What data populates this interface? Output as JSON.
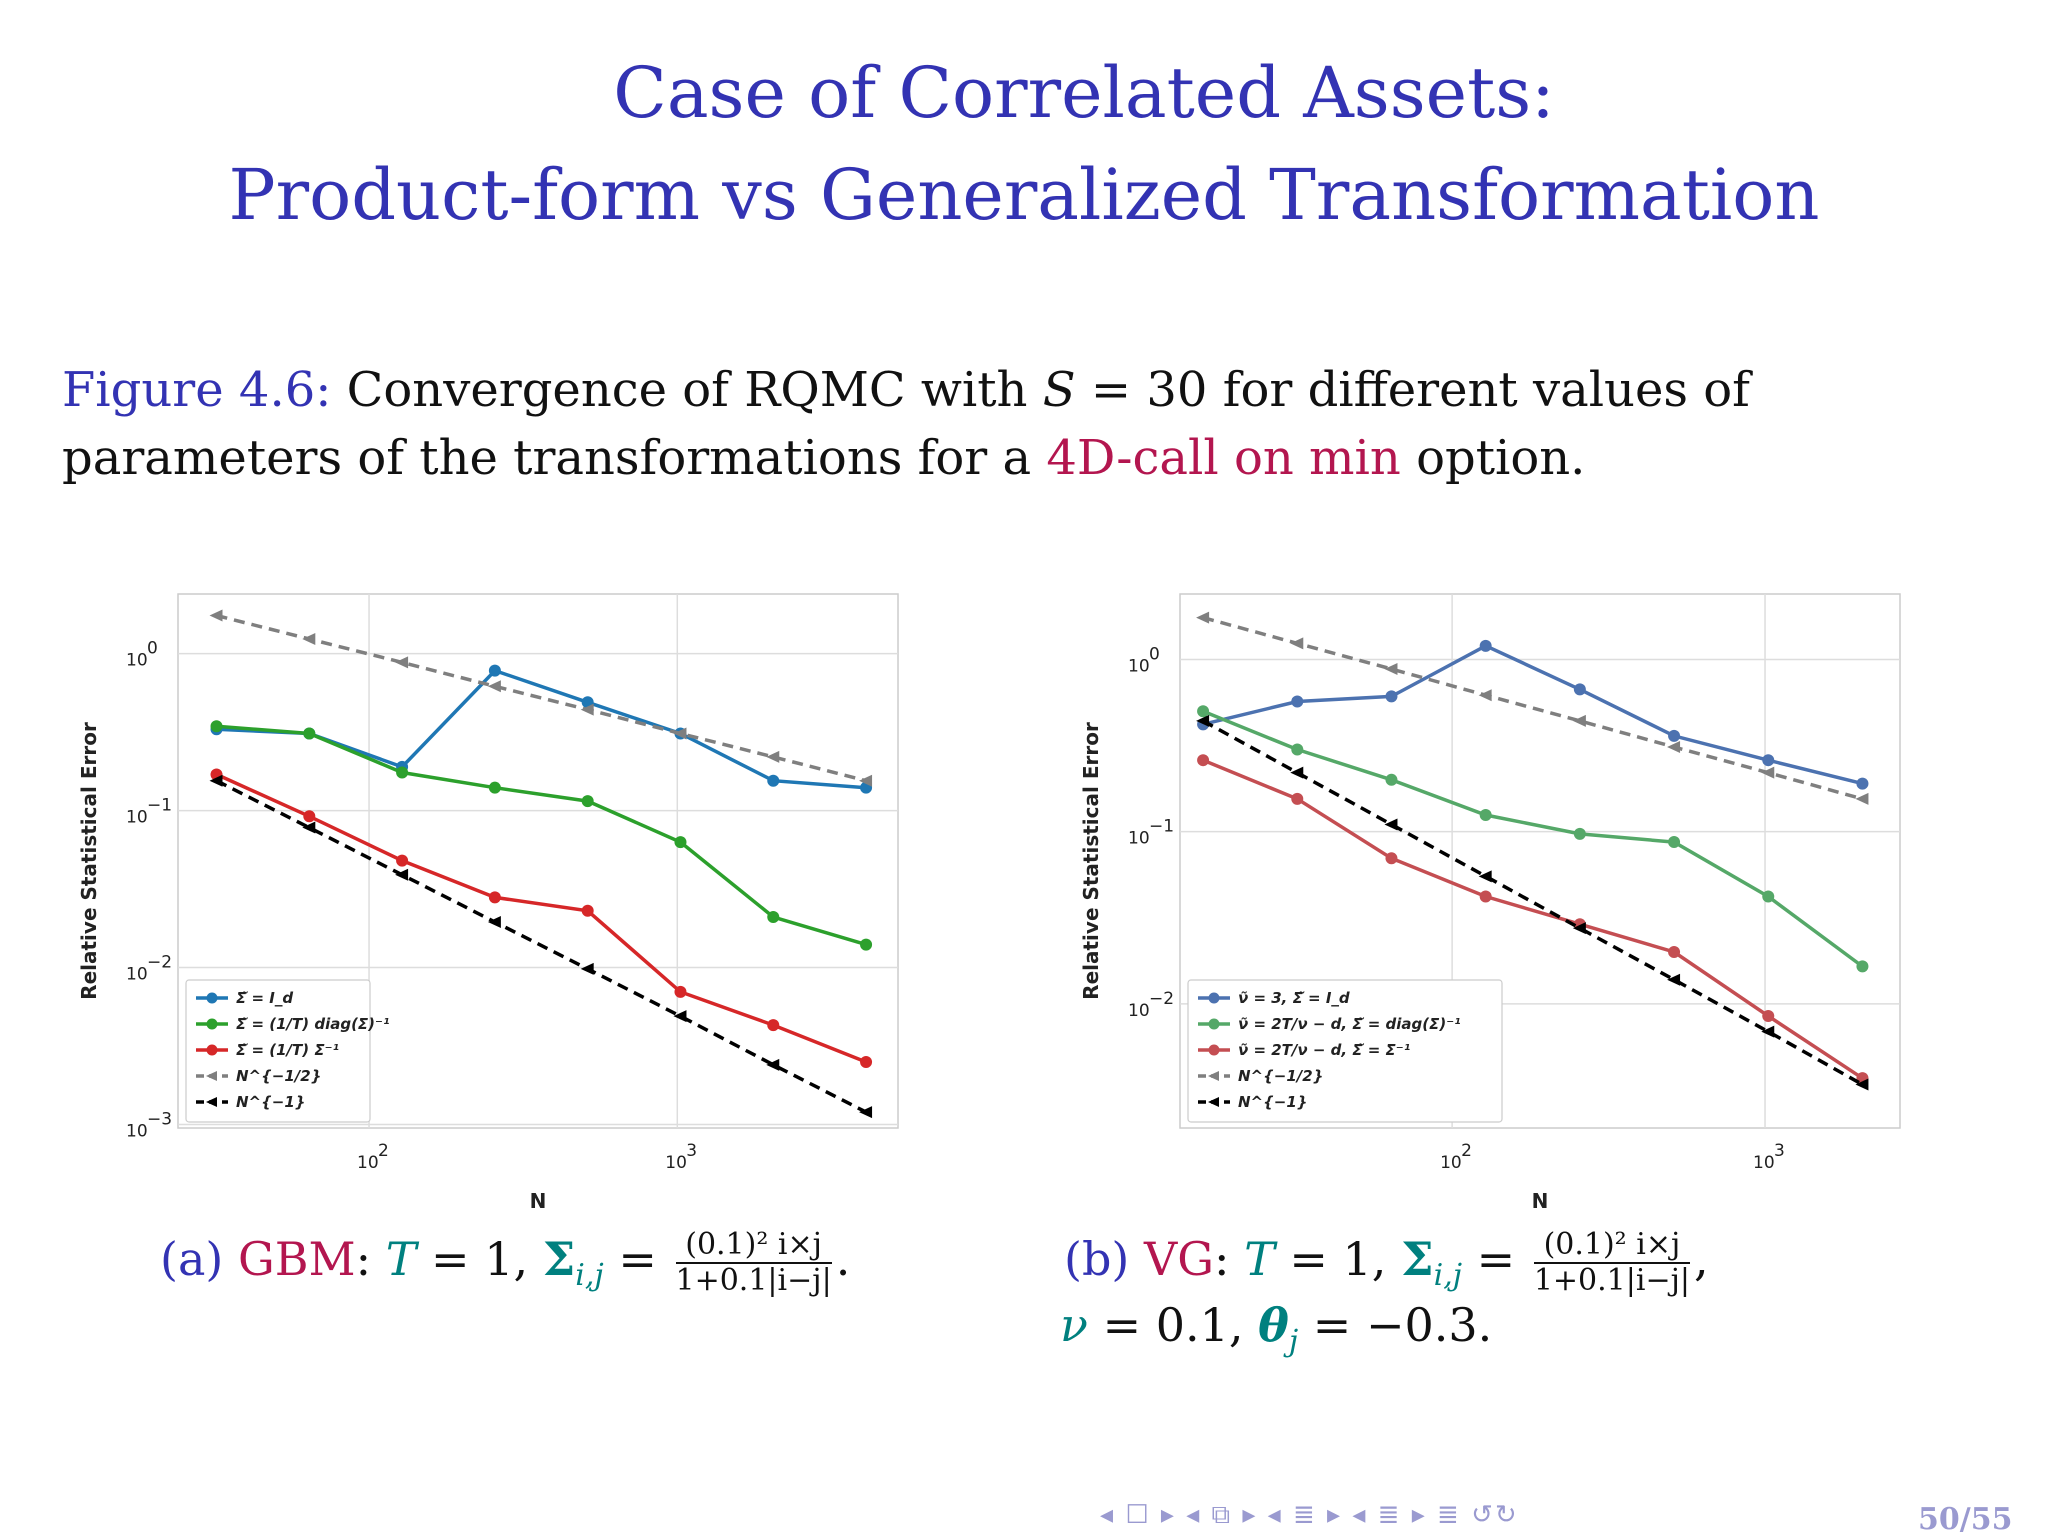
{
  "slide": {
    "title_line1": "Case of Correlated Assets:",
    "title_line2": "Product-form vs Generalized Transformation",
    "caption": {
      "label": "Figure 4.6:",
      "text1": " Convergence of RQMC with ",
      "s_var": "S",
      "s_eq": " = 30 for different values of",
      "text2": "parameters of the transformations for a ",
      "highlight": "4D-call on min",
      "text3": " option."
    },
    "nav_icons": "◂ ☐ ▸ ◂ ⧉ ▸ ◂ ≣ ▸ ◂ ≣ ▸   ≣   ↺↻",
    "page_number": "50/55"
  },
  "subcaptions": {
    "a": {
      "label": "(a)",
      "model": "GBM",
      "T": "T",
      "T_eq": " = 1, ",
      "sigma": "Σ",
      "sigma_idx": "i,j",
      "eq": " = ",
      "num": "(0.1)² i×j",
      "den": "1+0.1|i−j|",
      "end": "."
    },
    "b": {
      "label": "(b)",
      "model": "VG",
      "T": "T",
      "T_eq": " = 1, ",
      "sigma": "Σ",
      "sigma_idx": "i,j",
      "eq": " = ",
      "num": "(0.1)² i×j",
      "den": "1+0.1|i−j|",
      "end": ",",
      "nu": "ν",
      "nu_eq": " = 0.1, ",
      "theta": "θ",
      "theta_idx": "j",
      "theta_eq": " = −0.3."
    }
  },
  "chart_data": [
    {
      "type": "line",
      "xlabel": "N",
      "ylabel": "Relative Statistical Error",
      "xscale": "log",
      "yscale": "log",
      "xlim": [
        24,
        5200
      ],
      "ylim": [
        0.00095,
        2.4
      ],
      "xticks": [
        {
          "v": 100,
          "b": "10",
          "e": "2"
        },
        {
          "v": 1000,
          "b": "10",
          "e": "3"
        }
      ],
      "yticks": [
        {
          "v": 1,
          "b": "10",
          "e": "0"
        },
        {
          "v": 0.1,
          "b": "10",
          "e": "−1"
        },
        {
          "v": 0.01,
          "b": "10",
          "e": "−2"
        },
        {
          "v": 0.001,
          "b": "10",
          "e": "−3"
        }
      ],
      "grid": true,
      "legend_position": "lower-left",
      "series": [
        {
          "name": "Σ̃ = I_d",
          "color": "#1f77b4",
          "marker": "circle",
          "dash": false,
          "x": [
            32,
            64,
            128,
            256,
            512,
            1024,
            2048,
            4096
          ],
          "y": [
            0.33,
            0.31,
            0.19,
            0.78,
            0.49,
            0.31,
            0.155,
            0.14
          ]
        },
        {
          "name": "Σ̃ = (1/T) diag(Σ)⁻¹",
          "color": "#2ca02c",
          "marker": "circle",
          "dash": false,
          "x": [
            32,
            64,
            128,
            256,
            512,
            1024,
            2048,
            4096
          ],
          "y": [
            0.345,
            0.31,
            0.175,
            0.14,
            0.115,
            0.063,
            0.021,
            0.014
          ]
        },
        {
          "name": "Σ̃ = (1/T) Σ⁻¹",
          "color": "#d62728",
          "marker": "circle",
          "dash": false,
          "x": [
            32,
            64,
            128,
            256,
            512,
            1024,
            2048,
            4096
          ],
          "y": [
            0.17,
            0.092,
            0.048,
            0.028,
            0.023,
            0.007,
            0.0043,
            0.0025
          ]
        },
        {
          "name": "N^{−1/2}",
          "color": "#7f7f7f",
          "marker": "triangle-left",
          "dash": true,
          "x": [
            32,
            64,
            128,
            256,
            512,
            1024,
            2048,
            4096
          ],
          "y": [
            1.75,
            1.24,
            0.88,
            0.62,
            0.44,
            0.31,
            0.22,
            0.155
          ]
        },
        {
          "name": "N^{−1}",
          "color": "#000000",
          "marker": "triangle-left",
          "dash": true,
          "x": [
            32,
            64,
            128,
            256,
            512,
            1024,
            2048,
            4096
          ],
          "y": [
            0.155,
            0.078,
            0.039,
            0.0195,
            0.0098,
            0.0049,
            0.0024,
            0.0012
          ]
        }
      ]
    },
    {
      "type": "line",
      "xlabel": "N",
      "ylabel": "Relative Statistical Error",
      "xscale": "log",
      "yscale": "log",
      "xlim": [
        13.5,
        2700
      ],
      "ylim": [
        0.0019,
        2.4
      ],
      "xticks": [
        {
          "v": 100,
          "b": "10",
          "e": "2"
        },
        {
          "v": 1000,
          "b": "10",
          "e": "3"
        }
      ],
      "yticks": [
        {
          "v": 1,
          "b": "10",
          "e": "0"
        },
        {
          "v": 0.1,
          "b": "10",
          "e": "−1"
        },
        {
          "v": 0.01,
          "b": "10",
          "e": "−2"
        }
      ],
      "grid": true,
      "legend_position": "lower-left",
      "series": [
        {
          "name": "ν̃ = 3, Σ̃ = I_d",
          "color": "#4c72b0",
          "marker": "circle",
          "dash": false,
          "x": [
            16,
            32,
            64,
            128,
            256,
            512,
            1024,
            2048
          ],
          "y": [
            0.42,
            0.57,
            0.61,
            1.2,
            0.67,
            0.36,
            0.26,
            0.19
          ]
        },
        {
          "name": "ν̃ = 2T/ν − d, Σ̃ = diag(Σ)⁻¹",
          "color": "#55a868",
          "marker": "circle",
          "dash": false,
          "x": [
            16,
            32,
            64,
            128,
            256,
            512,
            1024,
            2048
          ],
          "y": [
            0.5,
            0.3,
            0.2,
            0.125,
            0.097,
            0.087,
            0.042,
            0.0165
          ]
        },
        {
          "name": "ν̃ = 2T/ν − d, Σ̃ = Σ⁻¹",
          "color": "#c44e52",
          "marker": "circle",
          "dash": false,
          "x": [
            16,
            32,
            64,
            128,
            256,
            512,
            1024,
            2048
          ],
          "y": [
            0.26,
            0.155,
            0.07,
            0.042,
            0.029,
            0.02,
            0.0085,
            0.0037
          ]
        },
        {
          "name": "N^{−1/2}",
          "color": "#7f7f7f",
          "marker": "triangle-left",
          "dash": true,
          "x": [
            16,
            32,
            64,
            128,
            256,
            512,
            1024,
            2048
          ],
          "y": [
            1.75,
            1.24,
            0.88,
            0.62,
            0.44,
            0.31,
            0.22,
            0.155
          ]
        },
        {
          "name": "N^{−1}",
          "color": "#000000",
          "marker": "triangle-left",
          "dash": true,
          "x": [
            16,
            32,
            64,
            128,
            256,
            512,
            1024,
            2048
          ],
          "y": [
            0.44,
            0.22,
            0.11,
            0.055,
            0.0275,
            0.0138,
            0.0069,
            0.0034
          ]
        }
      ]
    }
  ]
}
